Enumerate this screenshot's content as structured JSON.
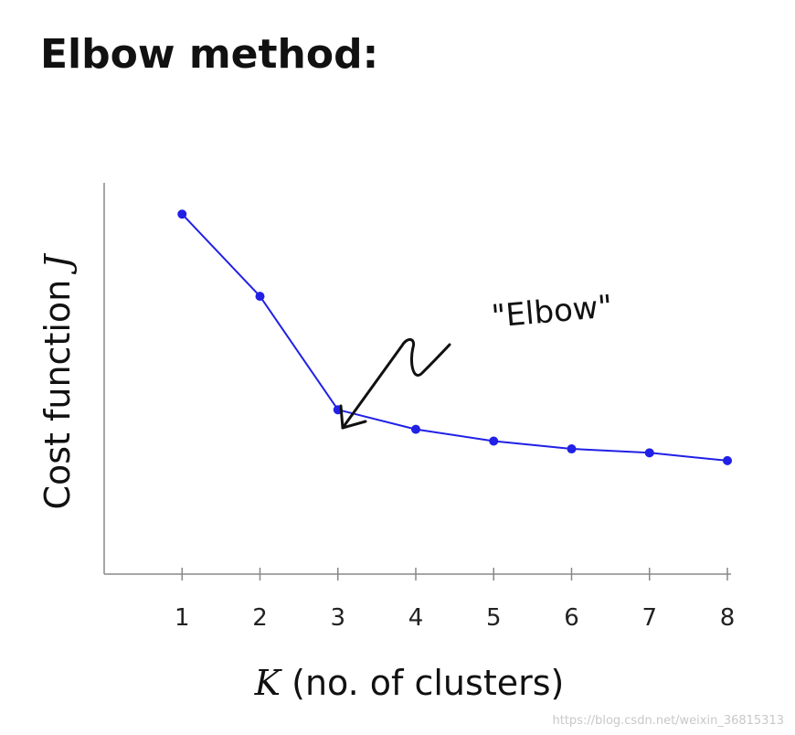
{
  "header": {
    "title": "Elbow method:"
  },
  "chart_data": {
    "type": "line",
    "x": [
      1,
      2,
      3,
      4,
      5,
      6,
      7,
      8
    ],
    "y": [
      0.92,
      0.71,
      0.42,
      0.37,
      0.34,
      0.32,
      0.31,
      0.29
    ],
    "xlabel_var": "K",
    "xlabel_rest": " (no. of clusters)",
    "ylabel_text": "Cost function ",
    "ylabel_var": "J",
    "xticks": [
      "1",
      "2",
      "3",
      "4",
      "5",
      "6",
      "7",
      "8"
    ],
    "xlim": [
      0,
      8
    ],
    "ylim": [
      0,
      1
    ],
    "grid": false,
    "annotation": {
      "text": "\"Elbow\"",
      "points_to_x": 3
    },
    "line_color": "#2020e6"
  },
  "watermark": "https://blog.csdn.net/weixin_36815313"
}
